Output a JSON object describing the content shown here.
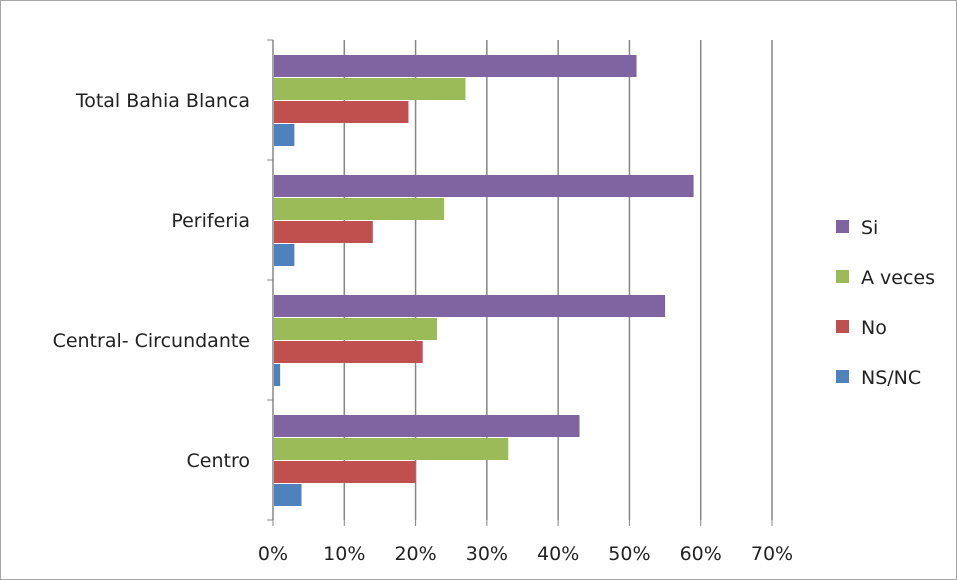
{
  "chart_data": {
    "type": "bar",
    "orientation": "horizontal",
    "categories": [
      "Total Bahia Blanca",
      "Periferia",
      "Central- Circundante",
      "Centro"
    ],
    "series": [
      {
        "name": "Si",
        "color": "#8064a2",
        "values": [
          51,
          59,
          55,
          43
        ]
      },
      {
        "name": "A veces",
        "color": "#9bbb59",
        "values": [
          27,
          24,
          23,
          33
        ]
      },
      {
        "name": "No",
        "color": "#c0504d",
        "values": [
          19,
          14,
          21,
          20
        ]
      },
      {
        "name": "NS/NC",
        "color": "#4f81bd",
        "values": [
          3,
          3,
          1,
          4
        ]
      }
    ],
    "xlim": [
      0,
      70
    ],
    "x_ticks": [
      "0%",
      "10%",
      "20%",
      "30%",
      "40%",
      "50%",
      "60%",
      "70%"
    ],
    "value_unit": "%",
    "grid": "vertical",
    "legend_position": "right",
    "title": "",
    "xlabel": "",
    "ylabel": ""
  }
}
